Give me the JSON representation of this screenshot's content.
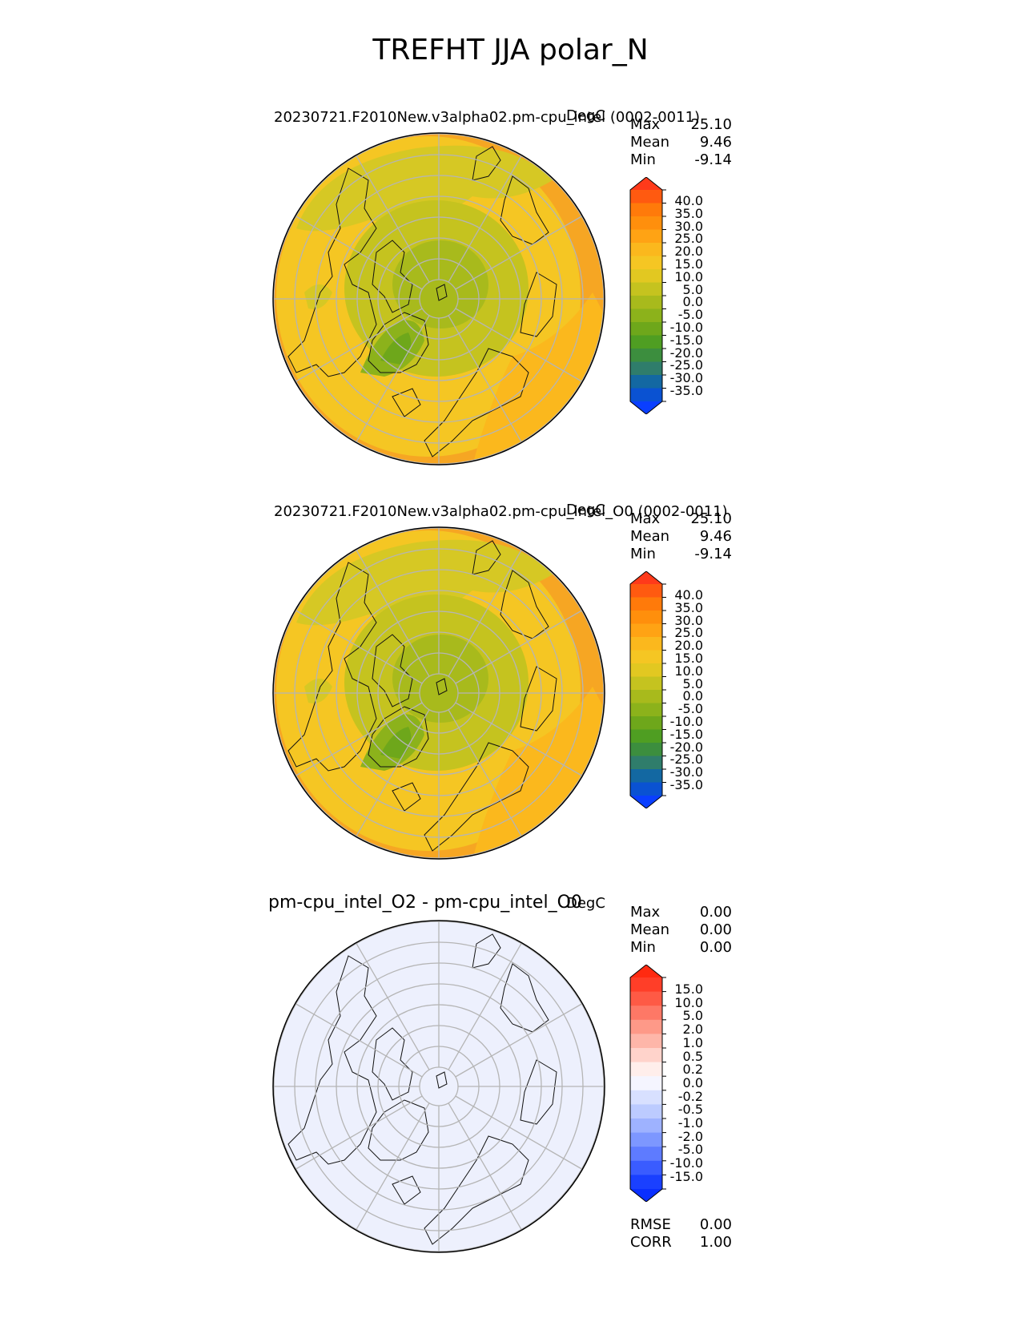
{
  "figure_title": "TREFHT JJA polar_N",
  "panels": [
    {
      "title": "20230721.F2010New.v3alpha02.pm-cpu_intel (0002-0011)",
      "units": "DegC",
      "stats": [
        {
          "label": "Max",
          "value": "25.10"
        },
        {
          "label": "Mean",
          "value": "9.46"
        },
        {
          "label": "Min",
          "value": "-9.14"
        }
      ],
      "colorbar": {
        "ticks": [
          "40.0",
          "35.0",
          "30.0",
          "25.0",
          "20.0",
          "15.0",
          "10.0",
          "5.0",
          "0.0",
          "-5.0",
          "-10.0",
          "-15.0",
          "-20.0",
          "-25.0",
          "-30.0",
          "-35.0"
        ],
        "colors": [
          "#ff3a1a",
          "#ff5a10",
          "#ff7a0a",
          "#ff8f0c",
          "#ffa314",
          "#fbb81d",
          "#f5c623",
          "#e2c821",
          "#c5c31f",
          "#a8ba1c",
          "#8cb21b",
          "#6ea71b",
          "#4f9e22",
          "#3c8e3e",
          "#2f7d6b",
          "#1368a2",
          "#0a52d2",
          "#0a3fff"
        ],
        "extend": "both"
      },
      "field": "absolute"
    },
    {
      "title": "20230721.F2010New.v3alpha02.pm-cpu_intel_O0 (0002-0011)",
      "units": "DegC",
      "stats": [
        {
          "label": "Max",
          "value": "25.10"
        },
        {
          "label": "Mean",
          "value": "9.46"
        },
        {
          "label": "Min",
          "value": "-9.14"
        }
      ],
      "colorbar": {
        "ticks": [
          "40.0",
          "35.0",
          "30.0",
          "25.0",
          "20.0",
          "15.0",
          "10.0",
          "5.0",
          "0.0",
          "-5.0",
          "-10.0",
          "-15.0",
          "-20.0",
          "-25.0",
          "-30.0",
          "-35.0"
        ],
        "colors": [
          "#ff3a1a",
          "#ff5a10",
          "#ff7a0a",
          "#ff8f0c",
          "#ffa314",
          "#fbb81d",
          "#f5c623",
          "#e2c821",
          "#c5c31f",
          "#a8ba1c",
          "#8cb21b",
          "#6ea71b",
          "#4f9e22",
          "#3c8e3e",
          "#2f7d6b",
          "#1368a2",
          "#0a52d2",
          "#0a3fff"
        ],
        "extend": "both"
      },
      "field": "absolute"
    },
    {
      "title": "pm-cpu_intel_O2 - pm-cpu_intel_O0",
      "units": "DegC",
      "stats": [
        {
          "label": "Max",
          "value": "0.00"
        },
        {
          "label": "Mean",
          "value": "0.00"
        },
        {
          "label": "Min",
          "value": "0.00"
        }
      ],
      "colorbar": {
        "ticks": [
          "15.0",
          "10.0",
          "5.0",
          "2.0",
          "1.0",
          "0.5",
          "0.2",
          "0.0",
          "-0.2",
          "-0.5",
          "-1.0",
          "-2.0",
          "-5.0",
          "-10.0",
          "-15.0"
        ],
        "colors": [
          "#ff2a10",
          "#ff3e28",
          "#fe5a45",
          "#fe7866",
          "#fe9988",
          "#feb6a9",
          "#ffd3cb",
          "#ffeeeb",
          "#f5f5ff",
          "#d8e0ff",
          "#bccbff",
          "#9eb2ff",
          "#7d97ff",
          "#5e7bff",
          "#3a5cff",
          "#1a40ff",
          "#0a2fff"
        ],
        "extend": "both"
      },
      "field": "difference",
      "extra_stats": [
        {
          "label": "RMSE",
          "value": "0.00"
        },
        {
          "label": "CORR",
          "value": "1.00"
        }
      ]
    }
  ]
}
